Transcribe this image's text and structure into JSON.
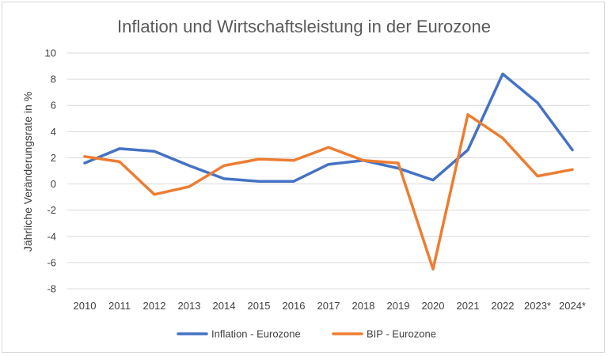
{
  "chart_data": {
    "type": "line",
    "title": "Inflation und Wirtschaftsleistung in der Eurozone",
    "xlabel": "",
    "ylabel": "Jährliche Veränderungsrate in %",
    "ylim": [
      -8,
      10
    ],
    "yticks": [
      "10",
      "8",
      "6",
      "4",
      "2",
      "0",
      "-2",
      "-4",
      "-6",
      "-8"
    ],
    "grid": true,
    "legend_position": "bottom",
    "categories": [
      "2010",
      "2011",
      "2012",
      "2013",
      "2014",
      "2015",
      "2016",
      "2017",
      "2018",
      "2019",
      "2020",
      "2021",
      "2022",
      "2023*",
      "2024*"
    ],
    "series": [
      {
        "name": "Inflation - Eurozone",
        "color": "#4472c4",
        "values": [
          1.6,
          2.7,
          2.5,
          1.4,
          0.4,
          0.2,
          0.2,
          1.5,
          1.8,
          1.2,
          0.3,
          2.6,
          8.4,
          6.2,
          2.6
        ]
      },
      {
        "name": "BIP - Eurozone",
        "color": "#ed7d31",
        "values": [
          2.1,
          1.7,
          -0.8,
          -0.2,
          1.4,
          1.9,
          1.8,
          2.8,
          1.8,
          1.6,
          -6.5,
          5.3,
          3.5,
          0.6,
          1.1
        ]
      }
    ]
  }
}
